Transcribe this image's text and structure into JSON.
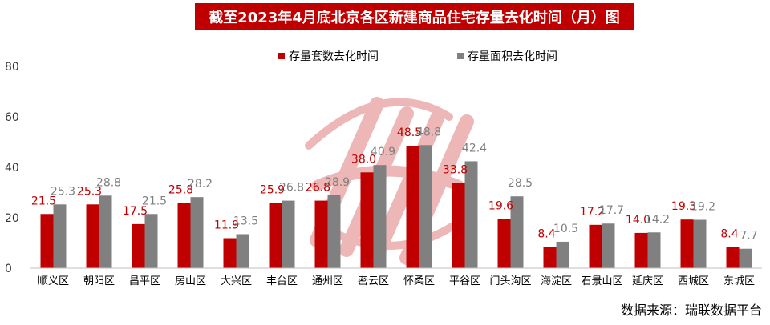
{
  "title": "截至2023年4月底北京各区新建商品住宅存量去化时间（月）图",
  "source": "数据来源：瑞联数据平台",
  "colors": {
    "title_bg": "#c00000",
    "series1": "#c00000",
    "series2": "#808080",
    "label1": "#c00000",
    "label2": "#7f7f7f"
  },
  "chart_data": {
    "type": "bar",
    "categories": [
      "顺义区",
      "朝阳区",
      "昌平区",
      "房山区",
      "大兴区",
      "丰台区",
      "通州区",
      "密云区",
      "怀柔区",
      "平谷区",
      "门头沟区",
      "海淀区",
      "石景山区",
      "延庆区",
      "西城区",
      "东城区"
    ],
    "series": [
      {
        "name": "存量套数去化时间",
        "values": [
          21.5,
          25.3,
          17.5,
          25.8,
          11.9,
          25.9,
          26.8,
          38.0,
          48.5,
          33.8,
          19.6,
          8.4,
          17.2,
          14.0,
          19.3,
          8.4
        ]
      },
      {
        "name": "存量面积去化时间",
        "values": [
          25.3,
          28.8,
          21.5,
          28.2,
          13.5,
          26.8,
          28.9,
          40.9,
          48.8,
          42.4,
          28.5,
          10.5,
          17.7,
          14.2,
          19.2,
          7.7
        ]
      }
    ],
    "value_labels": [
      [
        "21.5",
        "25.3",
        "17.5",
        "25.8",
        "11.9",
        "25.9",
        "26.8",
        "38.0",
        "48.5",
        "33.8",
        "19.6",
        "8.4",
        "17.2",
        "14.0",
        "19.3",
        "8.4"
      ],
      [
        "25.3",
        "28.8",
        "21.5",
        "28.2",
        "13.5",
        "26.8",
        "28.9",
        "40.9",
        "48.8",
        "42.4",
        "28.5",
        "10.5",
        "17.7",
        "14.2",
        "19.2",
        "7.7"
      ]
    ],
    "y_ticks": [
      "0",
      "20",
      "40",
      "60",
      "80"
    ],
    "ylim": [
      0,
      80
    ],
    "grid": false,
    "legend_position": "top"
  }
}
